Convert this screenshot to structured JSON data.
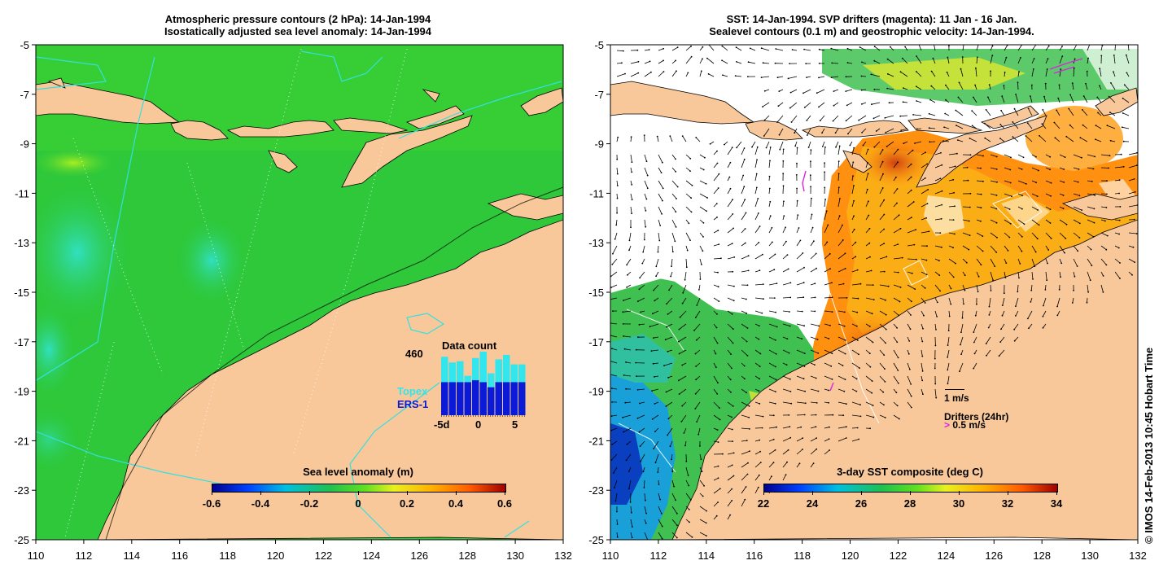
{
  "left_panel": {
    "title_line1": "Atmospheric pressure contours (2 hPa): 14-Jan-1994",
    "title_line2": "Isostatically adjusted sea level anomaly: 14-Jan-1994",
    "colorbar": {
      "title": "Sea level anomaly (m)",
      "ticks": [
        "-0.6",
        "-0.4",
        "-0.2",
        "0",
        "0.2",
        "0.4",
        "0.6"
      ]
    },
    "data_count": {
      "title": "Data count",
      "max_label": "460",
      "topex_label": "Topex",
      "ers_label": "ERS-1",
      "x_ticks": [
        "-5d",
        "0",
        "5"
      ],
      "topex_color": "#33e6ee",
      "ers_color": "#0a1ad6",
      "values_total": [
        0.92,
        0.83,
        0.85,
        0.62,
        0.9,
        1.0,
        0.66,
        0.88,
        0.95,
        0.8,
        0.8
      ],
      "values_ers": [
        0.52,
        0.52,
        0.52,
        0.52,
        0.55,
        0.52,
        0.44,
        0.52,
        0.52,
        0.52,
        0.52
      ]
    }
  },
  "right_panel": {
    "title_line1": "SST: 14-Jan-1994. SVP drifters (magenta): 11 Jan - 16 Jan.",
    "title_line2": "Sealevel contours (0.1 m) and geostrophic velocity: 14-Jan-1994.",
    "colorbar": {
      "title": "3-day SST composite (deg C)",
      "ticks": [
        "22",
        "24",
        "26",
        "28",
        "30",
        "32",
        "34"
      ]
    },
    "legend": {
      "velocity_label": "1 m/s",
      "drifters_label": "Drifters (24hr)",
      "drifter_speed_label": "0.5 m/s",
      "drifter_color": "#dd22dd"
    }
  },
  "axes": {
    "x_ticks": [
      "110",
      "112",
      "114",
      "116",
      "118",
      "120",
      "122",
      "124",
      "126",
      "128",
      "130",
      "132"
    ],
    "y_ticks": [
      "-5",
      "-7",
      "-9",
      "-11",
      "-13",
      "-15",
      "-17",
      "-19",
      "-21",
      "-23",
      "-25"
    ]
  },
  "colors": {
    "land": "#f8c89a",
    "ocean_green": "#2ec83a",
    "contour_cyan": "#33e0e0"
  },
  "credit": "© IMOS 14-Feb-2013 10:45 Hobart Time"
}
